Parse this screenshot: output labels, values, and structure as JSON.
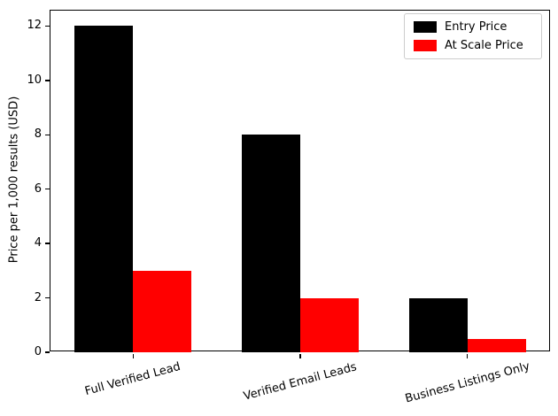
{
  "chart_data": {
    "type": "bar",
    "title": "",
    "categories": [
      "Full Verified Lead",
      "Verified Email Leads",
      "Business Listings Only"
    ],
    "series": [
      {
        "name": "Entry Price",
        "color": "#000000",
        "values": [
          12,
          8,
          2
        ]
      },
      {
        "name": "At Scale Price",
        "color": "#ff0000",
        "values": [
          3,
          2,
          0.5
        ]
      }
    ],
    "xlabel": "",
    "ylabel": "Price per 1,000 results (USD)",
    "ylim": [
      0,
      12.6
    ],
    "yticks": [
      0,
      2,
      4,
      6,
      8,
      10,
      12
    ],
    "grid": false,
    "legend_position": "upper right",
    "bar_width_frac": 0.35,
    "xtick_rotation_deg": 15
  }
}
